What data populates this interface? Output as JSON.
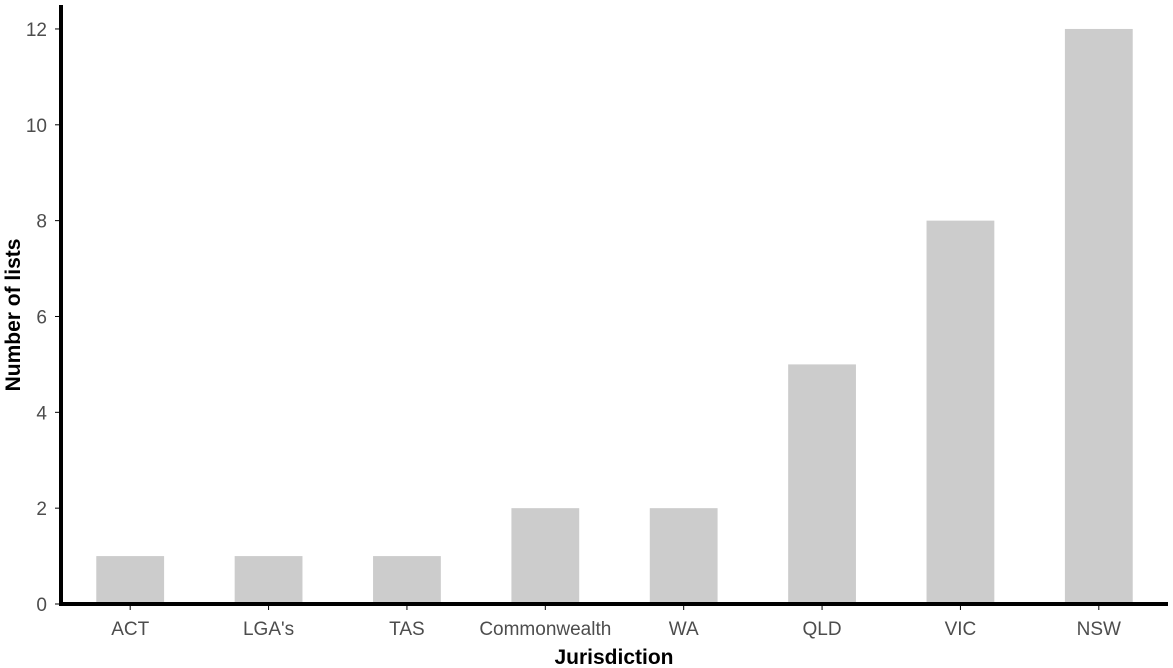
{
  "chart_data": {
    "type": "bar",
    "categories": [
      "ACT",
      "LGA's",
      "TAS",
      "Commonwealth",
      "WA",
      "QLD",
      "VIC",
      "NSW"
    ],
    "values": [
      1,
      1,
      1,
      2,
      2,
      5,
      8,
      12
    ],
    "xlabel": "Jurisdiction",
    "ylabel": "Number of lists",
    "ylim": [
      0,
      12.5
    ],
    "yticks": [
      "0",
      "2",
      "4",
      "6",
      "8",
      "10",
      "12"
    ],
    "grid": false,
    "legend": "none",
    "colors": {
      "bar": "#cccccc",
      "axis": "#000000",
      "tick_text": "#4d4d4d"
    }
  }
}
